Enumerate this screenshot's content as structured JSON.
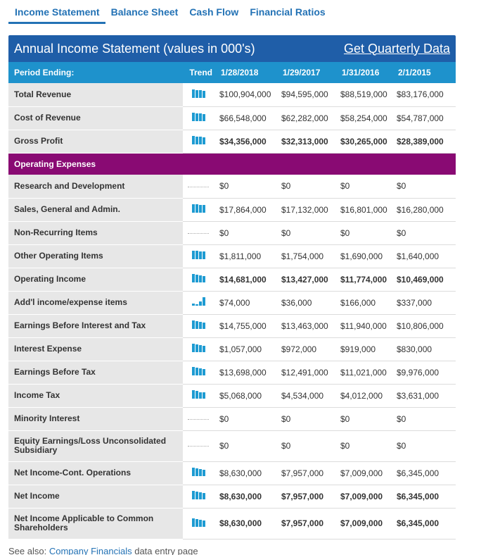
{
  "tabs": [
    "Income Statement",
    "Balance Sheet",
    "Cash Flow",
    "Financial Ratios"
  ],
  "active_tab": 0,
  "panel": {
    "title": "Annual Income Statement (values in 000's)",
    "link": "Get Quarterly Data"
  },
  "header": {
    "period_label": "Period Ending:",
    "trend_label": "Trend",
    "dates": [
      "1/28/2018",
      "1/29/2017",
      "1/31/2016",
      "2/1/2015"
    ]
  },
  "rows": [
    {
      "label": "Total Revenue",
      "values": [
        "$100,904,000",
        "$94,595,000",
        "$88,519,000",
        "$83,176,000"
      ],
      "trend": [
        100,
        94,
        88,
        82
      ]
    },
    {
      "label": "Cost of Revenue",
      "values": [
        "$66,548,000",
        "$62,282,000",
        "$58,254,000",
        "$54,787,000"
      ],
      "trend": [
        100,
        94,
        88,
        82
      ]
    },
    {
      "label": "Gross Profit",
      "values": [
        "$34,356,000",
        "$32,313,000",
        "$30,265,000",
        "$28,389,000"
      ],
      "trend": [
        100,
        94,
        88,
        83
      ],
      "bold": true,
      "sep": true
    },
    {
      "section": true,
      "label": "Operating Expenses"
    },
    {
      "label": "Research and Development",
      "values": [
        "$0",
        "$0",
        "$0",
        "$0"
      ],
      "trend": null
    },
    {
      "label": "Sales, General and Admin.",
      "values": [
        "$17,864,000",
        "$17,132,000",
        "$16,801,000",
        "$16,280,000"
      ],
      "trend": [
        100,
        96,
        94,
        91
      ]
    },
    {
      "label": "Non-Recurring Items",
      "values": [
        "$0",
        "$0",
        "$0",
        "$0"
      ],
      "trend": null
    },
    {
      "label": "Other Operating Items",
      "values": [
        "$1,811,000",
        "$1,754,000",
        "$1,690,000",
        "$1,640,000"
      ],
      "trend": [
        100,
        97,
        93,
        91
      ]
    },
    {
      "label": "Operating Income",
      "values": [
        "$14,681,000",
        "$13,427,000",
        "$11,774,000",
        "$10,469,000"
      ],
      "trend": [
        100,
        91,
        80,
        71
      ],
      "bold": true,
      "sep": true
    },
    {
      "label": "Add'l income/expense items",
      "values": [
        "$74,000",
        "$36,000",
        "$166,000",
        "$337,000"
      ],
      "trend": [
        22,
        11,
        49,
        100
      ]
    },
    {
      "label": "Earnings Before Interest and Tax",
      "values": [
        "$14,755,000",
        "$13,463,000",
        "$11,940,000",
        "$10,806,000"
      ],
      "trend": [
        100,
        91,
        81,
        73
      ]
    },
    {
      "label": "Interest Expense",
      "values": [
        "$1,057,000",
        "$972,000",
        "$919,000",
        "$830,000"
      ],
      "trend": [
        100,
        92,
        87,
        79
      ]
    },
    {
      "label": "Earnings Before Tax",
      "values": [
        "$13,698,000",
        "$12,491,000",
        "$11,021,000",
        "$9,976,000"
      ],
      "trend": [
        100,
        91,
        80,
        73
      ]
    },
    {
      "label": "Income Tax",
      "values": [
        "$5,068,000",
        "$4,534,000",
        "$4,012,000",
        "$3,631,000"
      ],
      "trend": [
        100,
        89,
        79,
        72
      ]
    },
    {
      "label": "Minority Interest",
      "values": [
        "$0",
        "$0",
        "$0",
        "$0"
      ],
      "trend": null
    },
    {
      "label": "Equity Earnings/Loss Unconsolidated Subsidiary",
      "values": [
        "$0",
        "$0",
        "$0",
        "$0"
      ],
      "trend": null,
      "tall": true
    },
    {
      "label": "Net Income-Cont. Operations",
      "values": [
        "$8,630,000",
        "$7,957,000",
        "$7,009,000",
        "$6,345,000"
      ],
      "trend": [
        100,
        92,
        81,
        74
      ]
    },
    {
      "label": "Net Income",
      "values": [
        "$8,630,000",
        "$7,957,000",
        "$7,009,000",
        "$6,345,000"
      ],
      "trend": [
        100,
        92,
        81,
        74
      ],
      "bold": true,
      "sep": true
    },
    {
      "label": "Net Income Applicable to Common Shareholders",
      "values": [
        "$8,630,000",
        "$7,957,000",
        "$7,009,000",
        "$6,345,000"
      ],
      "trend": [
        100,
        92,
        81,
        74
      ],
      "bold": true,
      "tall": true
    }
  ],
  "footer": {
    "prefix": "See also: ",
    "link": "Company Financials",
    "suffix": " data entry page"
  }
}
